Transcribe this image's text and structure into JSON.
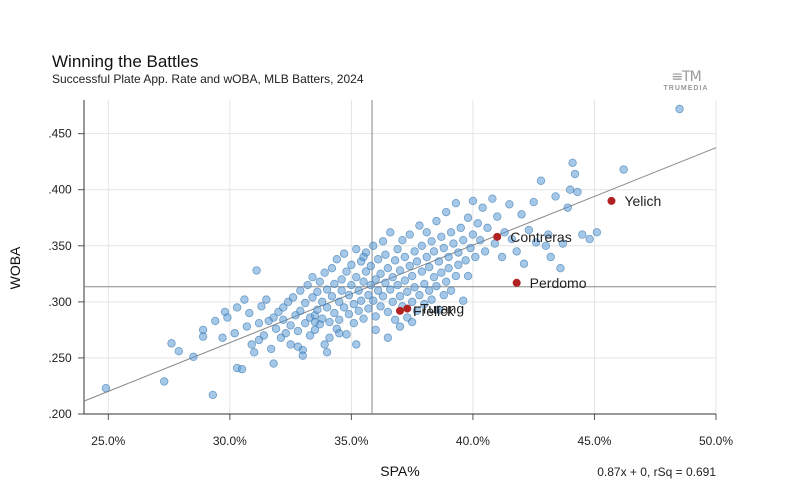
{
  "header": {
    "title": "Winning the Battles",
    "subtitle": "Successful Plate App. Rate and wOBA, MLB Batters, 2024"
  },
  "logo": {
    "mark": "≡TM",
    "word": "TRUMEDIA"
  },
  "colors": {
    "point": "#5b9bd5",
    "point_stroke": "#2f6fa8",
    "highlight": "#b22222",
    "grid": "#e4e4e4",
    "line": "#888888"
  },
  "chart_data": {
    "type": "scatter",
    "title": "Winning the Battles",
    "subtitle": "Successful Plate App. Rate and wOBA, MLB Batters, 2024",
    "xlabel": "SPA%",
    "ylabel": "WOBA",
    "xlim": [
      0.24,
      0.5
    ],
    "ylim": [
      0.2,
      0.48
    ],
    "x_ticks": [
      0.25,
      0.3,
      0.35,
      0.4,
      0.45,
      0.5
    ],
    "x_tick_labels": [
      "25.0%",
      "30.0%",
      "35.0%",
      "40.0%",
      "45.0%",
      "50.0%"
    ],
    "y_ticks": [
      0.2,
      0.25,
      0.3,
      0.35,
      0.4,
      0.45
    ],
    "y_tick_labels": [
      ".200",
      ".250",
      ".300",
      ".350",
      ".400",
      ".450"
    ],
    "grid": true,
    "mean_lines": {
      "x": 0.3585,
      "y": 0.3135
    },
    "regression": {
      "label": "0.87x + 0, rSq = 0.691",
      "x": [
        0.24,
        0.5
      ],
      "y": [
        0.2115,
        0.4375
      ]
    },
    "points": [
      [
        0.249,
        0.223
      ],
      [
        0.273,
        0.229
      ],
      [
        0.276,
        0.263
      ],
      [
        0.279,
        0.256
      ],
      [
        0.285,
        0.251
      ],
      [
        0.289,
        0.275
      ],
      [
        0.289,
        0.269
      ],
      [
        0.293,
        0.217
      ],
      [
        0.294,
        0.283
      ],
      [
        0.297,
        0.268
      ],
      [
        0.298,
        0.291
      ],
      [
        0.299,
        0.286
      ],
      [
        0.302,
        0.272
      ],
      [
        0.303,
        0.295
      ],
      [
        0.303,
        0.241
      ],
      [
        0.305,
        0.24
      ],
      [
        0.306,
        0.302
      ],
      [
        0.307,
        0.278
      ],
      [
        0.308,
        0.29
      ],
      [
        0.309,
        0.262
      ],
      [
        0.31,
        0.255
      ],
      [
        0.311,
        0.328
      ],
      [
        0.312,
        0.266
      ],
      [
        0.312,
        0.281
      ],
      [
        0.313,
        0.296
      ],
      [
        0.314,
        0.27
      ],
      [
        0.315,
        0.302
      ],
      [
        0.316,
        0.283
      ],
      [
        0.317,
        0.258
      ],
      [
        0.318,
        0.286
      ],
      [
        0.318,
        0.245
      ],
      [
        0.319,
        0.276
      ],
      [
        0.32,
        0.291
      ],
      [
        0.321,
        0.268
      ],
      [
        0.322,
        0.295
      ],
      [
        0.322,
        0.284
      ],
      [
        0.323,
        0.272
      ],
      [
        0.324,
        0.3
      ],
      [
        0.325,
        0.279
      ],
      [
        0.325,
        0.262
      ],
      [
        0.326,
        0.304
      ],
      [
        0.327,
        0.288
      ],
      [
        0.328,
        0.274
      ],
      [
        0.329,
        0.31
      ],
      [
        0.329,
        0.292
      ],
      [
        0.33,
        0.257
      ],
      [
        0.33,
        0.252
      ],
      [
        0.331,
        0.281
      ],
      [
        0.331,
        0.299
      ],
      [
        0.332,
        0.315
      ],
      [
        0.333,
        0.286
      ],
      [
        0.333,
        0.27
      ],
      [
        0.334,
        0.322
      ],
      [
        0.334,
        0.304
      ],
      [
        0.335,
        0.288
      ],
      [
        0.335,
        0.275
      ],
      [
        0.336,
        0.309
      ],
      [
        0.336,
        0.293
      ],
      [
        0.337,
        0.318
      ],
      [
        0.337,
        0.28
      ],
      [
        0.338,
        0.3
      ],
      [
        0.338,
        0.285
      ],
      [
        0.339,
        0.262
      ],
      [
        0.339,
        0.326
      ],
      [
        0.34,
        0.311
      ],
      [
        0.34,
        0.295
      ],
      [
        0.341,
        0.282
      ],
      [
        0.341,
        0.268
      ],
      [
        0.342,
        0.33
      ],
      [
        0.342,
        0.305
      ],
      [
        0.343,
        0.29
      ],
      [
        0.343,
        0.316
      ],
      [
        0.344,
        0.338
      ],
      [
        0.344,
        0.276
      ],
      [
        0.345,
        0.3
      ],
      [
        0.345,
        0.284
      ],
      [
        0.346,
        0.32
      ],
      [
        0.346,
        0.31
      ],
      [
        0.347,
        0.295
      ],
      [
        0.347,
        0.343
      ],
      [
        0.348,
        0.327
      ],
      [
        0.348,
        0.271
      ],
      [
        0.349,
        0.306
      ],
      [
        0.349,
        0.289
      ],
      [
        0.35,
        0.315
      ],
      [
        0.35,
        0.333
      ],
      [
        0.351,
        0.298
      ],
      [
        0.351,
        0.281
      ],
      [
        0.352,
        0.322
      ],
      [
        0.352,
        0.347
      ],
      [
        0.353,
        0.31
      ],
      [
        0.353,
        0.292
      ],
      [
        0.354,
        0.336
      ],
      [
        0.354,
        0.301
      ],
      [
        0.355,
        0.318
      ],
      [
        0.355,
        0.285
      ],
      [
        0.356,
        0.327
      ],
      [
        0.356,
        0.344
      ],
      [
        0.357,
        0.306
      ],
      [
        0.357,
        0.294
      ],
      [
        0.358,
        0.315
      ],
      [
        0.358,
        0.332
      ],
      [
        0.359,
        0.301
      ],
      [
        0.359,
        0.35
      ],
      [
        0.36,
        0.32
      ],
      [
        0.36,
        0.287
      ],
      [
        0.361,
        0.338
      ],
      [
        0.361,
        0.31
      ],
      [
        0.362,
        0.296
      ],
      [
        0.362,
        0.325
      ],
      [
        0.363,
        0.354
      ],
      [
        0.363,
        0.305
      ],
      [
        0.364,
        0.317
      ],
      [
        0.364,
        0.342
      ],
      [
        0.365,
        0.291
      ],
      [
        0.365,
        0.33
      ],
      [
        0.366,
        0.311
      ],
      [
        0.366,
        0.362
      ],
      [
        0.367,
        0.3
      ],
      [
        0.367,
        0.322
      ],
      [
        0.368,
        0.337
      ],
      [
        0.368,
        0.284
      ],
      [
        0.369,
        0.315
      ],
      [
        0.369,
        0.347
      ],
      [
        0.37,
        0.305
      ],
      [
        0.37,
        0.328
      ],
      [
        0.371,
        0.296
      ],
      [
        0.371,
        0.355
      ],
      [
        0.372,
        0.319
      ],
      [
        0.372,
        0.34
      ],
      [
        0.373,
        0.309
      ],
      [
        0.373,
        0.286
      ],
      [
        0.374,
        0.332
      ],
      [
        0.374,
        0.36
      ],
      [
        0.375,
        0.3
      ],
      [
        0.375,
        0.323
      ],
      [
        0.376,
        0.345
      ],
      [
        0.376,
        0.313
      ],
      [
        0.377,
        0.292
      ],
      [
        0.377,
        0.336
      ],
      [
        0.378,
        0.368
      ],
      [
        0.378,
        0.306
      ],
      [
        0.379,
        0.327
      ],
      [
        0.379,
        0.35
      ],
      [
        0.38,
        0.316
      ],
      [
        0.38,
        0.298
      ],
      [
        0.381,
        0.34
      ],
      [
        0.381,
        0.362
      ],
      [
        0.382,
        0.31
      ],
      [
        0.382,
        0.331
      ],
      [
        0.383,
        0.354
      ],
      [
        0.383,
        0.302
      ],
      [
        0.384,
        0.322
      ],
      [
        0.384,
        0.345
      ],
      [
        0.385,
        0.372
      ],
      [
        0.385,
        0.314
      ],
      [
        0.386,
        0.336
      ],
      [
        0.386,
        0.293
      ],
      [
        0.387,
        0.358
      ],
      [
        0.387,
        0.326
      ],
      [
        0.388,
        0.348
      ],
      [
        0.388,
        0.306
      ],
      [
        0.389,
        0.318
      ],
      [
        0.389,
        0.38
      ],
      [
        0.39,
        0.34
      ],
      [
        0.39,
        0.33
      ],
      [
        0.391,
        0.362
      ],
      [
        0.391,
        0.31
      ],
      [
        0.392,
        0.352
      ],
      [
        0.393,
        0.323
      ],
      [
        0.393,
        0.388
      ],
      [
        0.394,
        0.344
      ],
      [
        0.394,
        0.333
      ],
      [
        0.395,
        0.366
      ],
      [
        0.396,
        0.301
      ],
      [
        0.396,
        0.355
      ],
      [
        0.397,
        0.337
      ],
      [
        0.398,
        0.375
      ],
      [
        0.398,
        0.323
      ],
      [
        0.399,
        0.348
      ],
      [
        0.4,
        0.36
      ],
      [
        0.4,
        0.39
      ],
      [
        0.401,
        0.34
      ],
      [
        0.402,
        0.37
      ],
      [
        0.403,
        0.355
      ],
      [
        0.404,
        0.384
      ],
      [
        0.405,
        0.345
      ],
      [
        0.406,
        0.366
      ],
      [
        0.408,
        0.392
      ],
      [
        0.409,
        0.352
      ],
      [
        0.41,
        0.376
      ],
      [
        0.412,
        0.34
      ],
      [
        0.413,
        0.362
      ],
      [
        0.415,
        0.387
      ],
      [
        0.416,
        0.356
      ],
      [
        0.418,
        0.345
      ],
      [
        0.42,
        0.378
      ],
      [
        0.421,
        0.334
      ],
      [
        0.423,
        0.364
      ],
      [
        0.425,
        0.389
      ],
      [
        0.426,
        0.353
      ],
      [
        0.428,
        0.408
      ],
      [
        0.43,
        0.35
      ],
      [
        0.431,
        0.36
      ],
      [
        0.432,
        0.34
      ],
      [
        0.434,
        0.394
      ],
      [
        0.436,
        0.33
      ],
      [
        0.437,
        0.352
      ],
      [
        0.439,
        0.384
      ],
      [
        0.44,
        0.4
      ],
      [
        0.441,
        0.424
      ],
      [
        0.442,
        0.414
      ],
      [
        0.443,
        0.398
      ],
      [
        0.445,
        0.36
      ],
      [
        0.448,
        0.356
      ],
      [
        0.451,
        0.362
      ],
      [
        0.462,
        0.418
      ],
      [
        0.485,
        0.472
      ],
      [
        0.355,
        0.34
      ],
      [
        0.345,
        0.272
      ],
      [
        0.335,
        0.282
      ],
      [
        0.36,
        0.275
      ],
      [
        0.37,
        0.278
      ],
      [
        0.365,
        0.268
      ],
      [
        0.34,
        0.255
      ],
      [
        0.328,
        0.26
      ],
      [
        0.352,
        0.262
      ],
      [
        0.375,
        0.282
      ]
    ],
    "highlights": [
      {
        "name": "Yelich",
        "x": 0.457,
        "y": 0.39
      },
      {
        "name": "Contreras",
        "x": 0.41,
        "y": 0.358
      },
      {
        "name": "Perdomo",
        "x": 0.418,
        "y": 0.317
      },
      {
        "name": "Turang",
        "x": 0.373,
        "y": 0.294
      },
      {
        "name": "Frelick",
        "x": 0.37,
        "y": 0.292
      }
    ]
  }
}
